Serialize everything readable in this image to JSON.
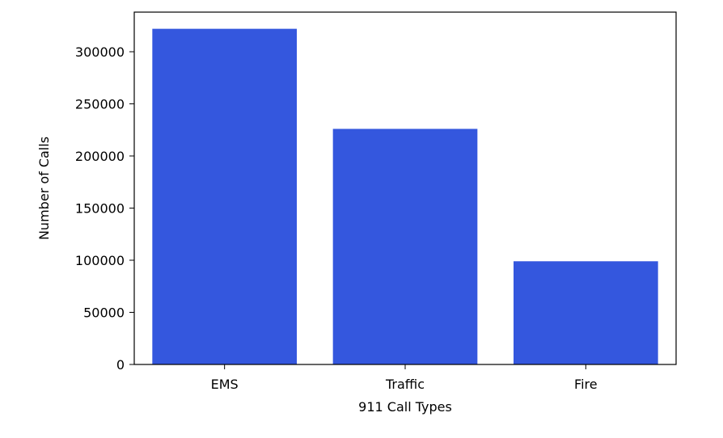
{
  "chart_data": {
    "type": "bar",
    "categories": [
      "EMS",
      "Traffic",
      "Fire"
    ],
    "values": [
      322000,
      226000,
      99000
    ],
    "xlabel": "911 Call Types",
    "ylabel": "Number of Calls",
    "ylim": [
      0,
      338000
    ],
    "yticks": [
      0,
      50000,
      100000,
      150000,
      200000,
      250000,
      300000
    ],
    "ytick_labels": [
      "0",
      "50000",
      "100000",
      "150000",
      "200000",
      "250000",
      "300000"
    ],
    "bar_color": "#3457de",
    "grid": false,
    "legend": "none"
  }
}
